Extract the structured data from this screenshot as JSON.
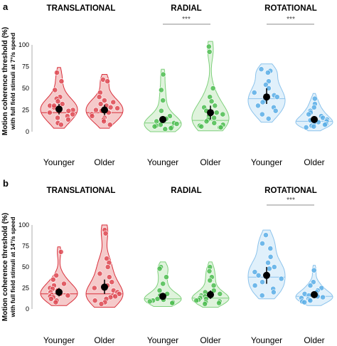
{
  "colors": {
    "Translational": {
      "fill": "#f2b8b8",
      "stroke": "#d9303c",
      "point": "#de4b55"
    },
    "Radial": {
      "fill": "#d4efd0",
      "stroke": "#7fd07c",
      "point": "#4fbd52"
    },
    "Rotational": {
      "fill": "#d6ebfa",
      "stroke": "#8cc3ec",
      "point": "#5aaee6"
    }
  },
  "chart_data": [
    {
      "type": "violin",
      "panel_label": "a",
      "ylabel": "Motion coherence threshold (%)",
      "ylabel_sub": "with full field stimuli at 7°/s speed",
      "ylim": [
        0,
        100
      ],
      "yticks": [
        "0",
        "25",
        "50",
        "75",
        "100"
      ],
      "groups": [
        "TRANSLATIONAL",
        "RADIAL",
        "ROTATIONAL"
      ],
      "categories": [
        "Younger",
        "Older"
      ],
      "significance": [
        {
          "group": "RADIAL",
          "label": "***"
        },
        {
          "group": "ROTATIONAL",
          "label": "***"
        }
      ],
      "series": [
        {
          "group": "Translational",
          "category": "Younger",
          "median": 22,
          "mean": 26,
          "ci": [
            20,
            32
          ],
          "points": [
            68,
            58,
            48,
            40,
            38,
            35,
            32,
            30,
            28,
            27,
            25,
            24,
            22,
            20,
            18,
            16,
            14,
            10,
            8,
            30
          ]
        },
        {
          "group": "Translational",
          "category": "Older",
          "median": 22,
          "mean": 25,
          "ci": [
            19,
            31
          ],
          "points": [
            60,
            58,
            45,
            40,
            36,
            34,
            32,
            30,
            28,
            27,
            25,
            22,
            20,
            18,
            16,
            14,
            12,
            8,
            24
          ]
        },
        {
          "group": "Radial",
          "category": "Younger",
          "median": 10,
          "mean": 14,
          "ci": [
            10,
            18
          ],
          "points": [
            66,
            48,
            36,
            24,
            18,
            15,
            12,
            10,
            9,
            8,
            7,
            6,
            5,
            4,
            3
          ]
        },
        {
          "group": "Radial",
          "category": "Older",
          "median": 13,
          "mean": 22,
          "ci": [
            14,
            30
          ],
          "points": [
            98,
            92,
            50,
            40,
            35,
            30,
            28,
            24,
            22,
            20,
            18,
            16,
            14,
            12,
            10,
            8,
            7,
            6,
            5,
            5
          ]
        },
        {
          "group": "Rotational",
          "category": "Younger",
          "median": 38,
          "mean": 40,
          "ci": [
            32,
            50
          ],
          "points": [
            72,
            70,
            68,
            58,
            54,
            50,
            45,
            42,
            40,
            36,
            34,
            30,
            28,
            24,
            20,
            15
          ]
        },
        {
          "group": "Rotational",
          "category": "Older",
          "median": 12,
          "mean": 14,
          "ci": [
            10,
            18
          ],
          "points": [
            38,
            32,
            28,
            24,
            22,
            20,
            18,
            16,
            14,
            13,
            12,
            11,
            10,
            9,
            8,
            7,
            6,
            5
          ]
        }
      ]
    },
    {
      "type": "violin",
      "panel_label": "b",
      "ylabel": "Motion coherence threshold (%)",
      "ylabel_sub": "with full field stimuli at 14°/s speed",
      "ylim": [
        0,
        100
      ],
      "yticks": [
        "0",
        "25",
        "50",
        "75",
        "100"
      ],
      "groups": [
        "TRANSLATIONAL",
        "RADIAL",
        "ROTATIONAL"
      ],
      "categories": [
        "Younger",
        "Older"
      ],
      "significance": [
        {
          "group": "ROTATIONAL",
          "label": "***"
        }
      ],
      "series": [
        {
          "group": "Translational",
          "category": "Younger",
          "median": 18,
          "mean": 20,
          "ci": [
            15,
            25
          ],
          "points": [
            68,
            40,
            35,
            30,
            28,
            25,
            24,
            22,
            20,
            18,
            17,
            16,
            15,
            14,
            12,
            10,
            8
          ]
        },
        {
          "group": "Translational",
          "category": "Older",
          "median": 18,
          "mean": 26,
          "ci": [
            18,
            35
          ],
          "points": [
            94,
            90,
            60,
            55,
            50,
            42,
            38,
            32,
            28,
            25,
            22,
            20,
            18,
            16,
            15,
            14,
            12,
            10,
            8,
            6
          ]
        },
        {
          "group": "Radial",
          "category": "Younger",
          "median": 12,
          "mean": 15,
          "ci": [
            11,
            18
          ],
          "points": [
            50,
            48,
            38,
            30,
            22,
            18,
            16,
            14,
            12,
            11,
            10,
            9,
            8,
            7
          ]
        },
        {
          "group": "Radial",
          "category": "Older",
          "median": 13,
          "mean": 17,
          "ci": [
            12,
            22
          ],
          "points": [
            50,
            45,
            38,
            34,
            28,
            22,
            20,
            18,
            16,
            15,
            14,
            13,
            12,
            11,
            10,
            9,
            8,
            7,
            6
          ]
        },
        {
          "group": "Rotational",
          "category": "Younger",
          "median": 38,
          "mean": 40,
          "ci": [
            30,
            50
          ],
          "points": [
            88,
            78,
            72,
            62,
            55,
            50,
            48,
            44,
            40,
            36,
            32,
            28,
            24,
            20,
            16
          ]
        },
        {
          "group": "Rotational",
          "category": "Older",
          "median": 15,
          "mean": 17,
          "ci": [
            13,
            21
          ],
          "points": [
            46,
            32,
            28,
            25,
            22,
            20,
            18,
            17,
            16,
            15,
            14,
            13,
            12,
            11,
            10,
            9,
            8
          ]
        }
      ]
    }
  ]
}
